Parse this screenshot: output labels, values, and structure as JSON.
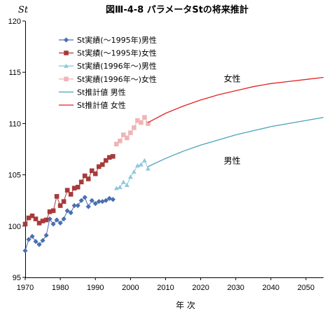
{
  "chart_data": {
    "type": "line",
    "title": "図Ⅲ-4-8 パラメータStの将来推計",
    "ylabel": "St",
    "xlabel": "年 次",
    "xlim": [
      1970,
      2055
    ],
    "ylim": [
      95,
      120
    ],
    "xticks": [
      "1970",
      "1980",
      "1990",
      "2000",
      "2010",
      "2020",
      "2030",
      "2040",
      "2050"
    ],
    "yticks": [
      "95",
      "100",
      "105",
      "110",
      "115",
      "120"
    ],
    "grid": false,
    "legend_position": "top-left",
    "series": [
      {
        "name": "St実績(～1995年)男性",
        "color": "#4a6fb0",
        "marker": "diamond",
        "x": [
          1970,
          1971,
          1972,
          1973,
          1974,
          1975,
          1976,
          1977,
          1978,
          1979,
          1980,
          1981,
          1982,
          1983,
          1984,
          1985,
          1986,
          1987,
          1988,
          1989,
          1990,
          1991,
          1992,
          1993,
          1994,
          1995
        ],
        "y": [
          97.6,
          98.7,
          99.0,
          98.5,
          98.2,
          98.6,
          99.1,
          100.7,
          100.2,
          100.6,
          100.3,
          100.7,
          101.5,
          101.3,
          102.0,
          102.0,
          102.5,
          102.8,
          101.9,
          102.5,
          102.2,
          102.4,
          102.4,
          102.5,
          102.7,
          102.6
        ]
      },
      {
        "name": "St実績(～1995年)女性",
        "color": "#a83a3a",
        "marker": "square",
        "x": [
          1970,
          1971,
          1972,
          1973,
          1974,
          1975,
          1976,
          1977,
          1978,
          1979,
          1980,
          1981,
          1982,
          1983,
          1984,
          1985,
          1986,
          1987,
          1988,
          1989,
          1990,
          1991,
          1992,
          1993,
          1994,
          1995
        ],
        "y": [
          100.2,
          100.8,
          101.0,
          100.7,
          100.3,
          100.5,
          100.6,
          101.4,
          101.5,
          102.9,
          102.0,
          102.4,
          103.5,
          103.1,
          103.7,
          103.8,
          104.3,
          104.9,
          104.6,
          105.4,
          105.1,
          105.8,
          106.0,
          106.4,
          106.7,
          106.8
        ]
      },
      {
        "name": "St実績(1996年～)男性",
        "color": "#8fc7dc",
        "marker": "triangle",
        "x": [
          1996,
          1997,
          1998,
          1999,
          2000,
          2001,
          2002,
          2003,
          2004,
          2005
        ],
        "y": [
          103.7,
          103.8,
          104.3,
          104.0,
          104.8,
          105.3,
          105.9,
          106.0,
          106.4,
          105.6
        ]
      },
      {
        "name": "St実績(1996年～)女性",
        "color": "#f0b4b4",
        "marker": "square",
        "x": [
          1996,
          1997,
          1998,
          1999,
          2000,
          2001,
          2002,
          2003,
          2004,
          2005
        ],
        "y": [
          108.0,
          108.3,
          108.9,
          108.6,
          109.1,
          109.6,
          110.3,
          110.1,
          110.6,
          110.0
        ]
      },
      {
        "name": "St推計値 男性",
        "color": "#4aa3b8",
        "marker": "none",
        "x": [
          2005,
          2010,
          2015,
          2020,
          2025,
          2030,
          2035,
          2040,
          2045,
          2050,
          2055
        ],
        "y": [
          105.8,
          106.6,
          107.3,
          107.9,
          108.4,
          108.9,
          109.3,
          109.7,
          110.0,
          110.3,
          110.6
        ]
      },
      {
        "name": "St推計値 女性",
        "color": "#e32222",
        "marker": "none",
        "x": [
          2005,
          2010,
          2015,
          2020,
          2025,
          2030,
          2035,
          2040,
          2045,
          2050,
          2055
        ],
        "y": [
          110.1,
          111.0,
          111.7,
          112.3,
          112.8,
          113.2,
          113.6,
          113.9,
          114.1,
          114.3,
          114.5
        ]
      }
    ],
    "annotations": [
      {
        "text": "女性",
        "x": 2029,
        "y": 114.1
      },
      {
        "text": "男性",
        "x": 2029,
        "y": 106.1
      }
    ]
  }
}
